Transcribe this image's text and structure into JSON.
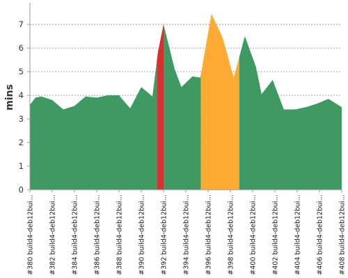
{
  "chart_data": {
    "type": "area",
    "ylabel": "mins",
    "ylim": [
      0,
      7.8
    ],
    "y_ticks": [
      0,
      1,
      2,
      3,
      4,
      5,
      6,
      7
    ],
    "grid": true,
    "colors": {
      "success": "#3e9a62",
      "failure": "#d63030",
      "unstable": "#ffaa33"
    },
    "x_tick_labels": [
      {
        "index": 0,
        "label": "#380 build4-deb12bui..."
      },
      {
        "index": 2,
        "label": "#382 build4-deb12bui..."
      },
      {
        "index": 4,
        "label": "#384 build4-deb12bui..."
      },
      {
        "index": 6,
        "label": "#386 build4-deb12bui..."
      },
      {
        "index": 8,
        "label": "#388 build4-deb12bui..."
      },
      {
        "index": 10,
        "label": "#390 build4-deb12bui..."
      },
      {
        "index": 12,
        "label": "#392 build4-deb12bui..."
      },
      {
        "index": 14,
        "label": "#394 build4-deb12bui..."
      },
      {
        "index": 16,
        "label": "#396 build4-deb12bui..."
      },
      {
        "index": 18,
        "label": "#398 build4-deb12bui..."
      },
      {
        "index": 20,
        "label": "#400 build4-deb12bui..."
      },
      {
        "index": 22,
        "label": "#402 build4-deb12bui..."
      },
      {
        "index": 24,
        "label": "#404 build4-deb12bui..."
      },
      {
        "index": 26,
        "label": "#406 build4-deb12bui..."
      },
      {
        "index": 28,
        "label": "#408 build4-deb12bui..."
      }
    ],
    "points": [
      {
        "x": 380,
        "y": 3.6
      },
      {
        "x": 380.5,
        "y": 3.9
      },
      {
        "x": 381,
        "y": 3.95
      },
      {
        "x": 382,
        "y": 3.8
      },
      {
        "x": 383,
        "y": 3.4
      },
      {
        "x": 384,
        "y": 3.55
      },
      {
        "x": 385,
        "y": 3.95
      },
      {
        "x": 386,
        "y": 3.9
      },
      {
        "x": 387,
        "y": 4.0
      },
      {
        "x": 388,
        "y": 4.0
      },
      {
        "x": 389,
        "y": 3.45
      },
      {
        "x": 390,
        "y": 4.35
      },
      {
        "x": 391,
        "y": 3.95
      },
      {
        "x": 391.5,
        "y": 5.85
      },
      {
        "x": 392,
        "y": 7.0
      },
      {
        "x": 393,
        "y": 5.1
      },
      {
        "x": 393.6,
        "y": 4.35
      },
      {
        "x": 394.6,
        "y": 4.8
      },
      {
        "x": 395.3,
        "y": 4.75
      },
      {
        "x": 396.3,
        "y": 7.45
      },
      {
        "x": 397.3,
        "y": 6.45
      },
      {
        "x": 398.3,
        "y": 4.75
      },
      {
        "x": 399.3,
        "y": 6.5
      },
      {
        "x": 400.3,
        "y": 5.2
      },
      {
        "x": 400.8,
        "y": 4.05
      },
      {
        "x": 401.8,
        "y": 4.65
      },
      {
        "x": 402.8,
        "y": 3.4
      },
      {
        "x": 403.8,
        "y": 3.4
      },
      {
        "x": 404.8,
        "y": 3.5
      },
      {
        "x": 405.8,
        "y": 3.65
      },
      {
        "x": 406.8,
        "y": 3.85
      },
      {
        "x": 408,
        "y": 3.5
      }
    ],
    "segments": [
      {
        "from": 380,
        "to": 391.4,
        "status": "success"
      },
      {
        "from": 391.4,
        "to": 392.05,
        "status": "failure"
      },
      {
        "from": 392.05,
        "to": 395.35,
        "status": "success"
      },
      {
        "from": 395.35,
        "to": 398.8,
        "status": "unstable"
      },
      {
        "from": 398.8,
        "to": 408,
        "status": "success"
      }
    ]
  }
}
